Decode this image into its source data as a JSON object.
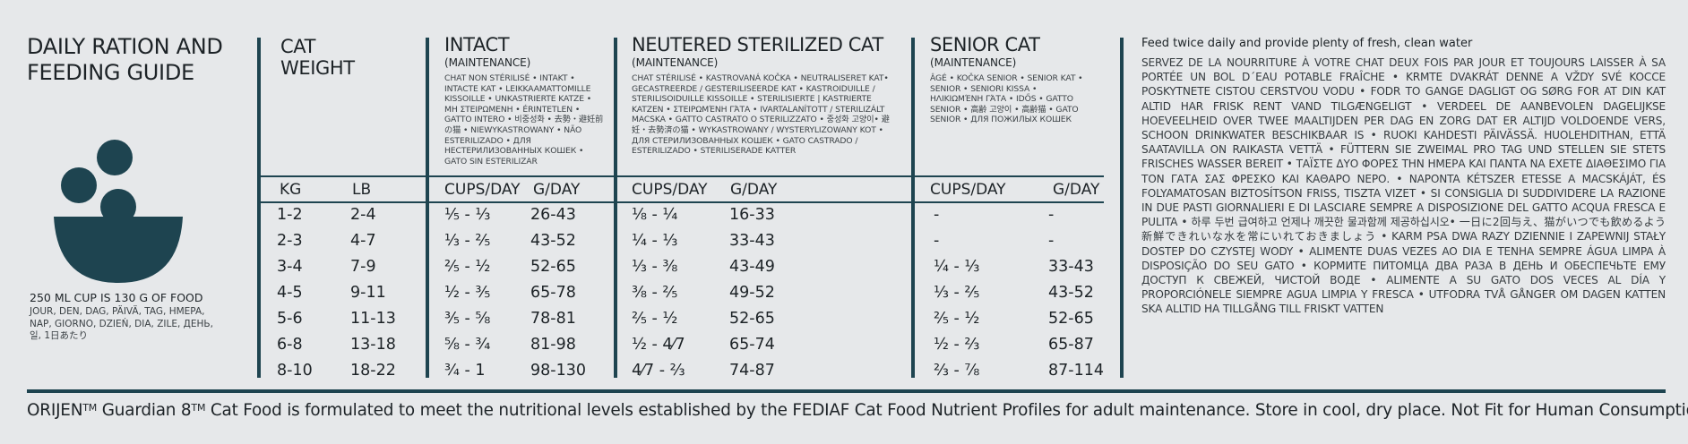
{
  "header": {
    "title_line1": "DAILY RATION AND",
    "title_line2": "FEEDING GUIDE"
  },
  "cup_info": {
    "main": "250 ML CUP IS 130 G OF FOOD",
    "translations": "JOUR, DEN, DAG, PÄIVÄ, TAG, HMEPA, NAP, GIORNO, DZIEŃ, DIA, ZILE, ДЕНЬ, 일, 1日あたり"
  },
  "weight": {
    "title_line1": "CAT",
    "title_line2": "WEIGHT",
    "unit_kg": "KG",
    "unit_lb": "LB",
    "kg": [
      "1-2",
      "2-3",
      "3-4",
      "4-5",
      "5-6",
      "6-8",
      "8-10"
    ],
    "lb": [
      "2-4",
      "4-7",
      "7-9",
      "9-11",
      "11-13",
      "13-18",
      "18-22"
    ]
  },
  "intact": {
    "title": "INTACT",
    "subtitle": "(MAINTENANCE)",
    "translations": "CHAT NON STÉRILISÉ • INTAKT • INTACTE KAT • LEIKKAAMATTOMILLE KISSOILLE • UNKASTRIERTE KATZE • ΜΗ ΣΤΕΙΡΩΜΕΝΗ • ÉRINTETLEN • GATTO INTERO • 비중성화 • 去勢・避妊前の猫 • NIEWYKASTROWANY • NÃO ESTERILIZADO • ДЛЯ НЕСТЕРИЛИЗОВАННЫХ КОШЕК • GATO SIN ESTERILIZAR",
    "unit_cups": "CUPS/DAY",
    "unit_g": "G/DAY",
    "cups": [
      "⅕ - ⅓",
      "⅓ - ⅖",
      "⅖ - ½",
      "½ - ⅗",
      "⅗ - ⅝",
      "⅝ - ¾",
      "¾ - 1"
    ],
    "g": [
      "26-43",
      "43-52",
      "52-65",
      "65-78",
      "78-81",
      "81-98",
      "98-130"
    ]
  },
  "neutered": {
    "title": "NEUTERED STERILIZED CAT",
    "subtitle": "(MAINTENANCE)",
    "translations": "CHAT STÉRILISÉ • KASTROVANÁ KOČKA • NEUTRALISERET KAT• GECASTREERDE / GESTERILISEERDE KAT • KASTROIDUILLE / STERILISOIDUILLE KISSOILLE • STERILISIERTE | KASTRIERTE KATZEN • ΣΤΕΙΡΩΜΈΝΗ ΓΆΤΑ • IVARTALANÍTOTT / STERILIZÁLT MACSKA • GATTO CASTRATO O STERILIZZATO • 중성화 고양이• 避妊・去勢済の猫 • WYKASTROWANY / WYSTERYLIZOWANY KOT • ДЛЯ СТЕРИЛИЗОВАННЫХ КОШЕК • GATO CASTRADO / ESTERILIZADO • STERILISERADE KATTER",
    "unit_cups": "CUPS/DAY",
    "unit_g": "G/DAY",
    "cups": [
      "⅛ - ¼",
      "¼ - ⅓",
      "⅓ - ⅜",
      "⅜ - ⅖",
      "⅖ - ½",
      "½ - 4⁄7",
      "4⁄7 - ⅔"
    ],
    "g": [
      "16-33",
      "33-43",
      "43-49",
      "49-52",
      "52-65",
      "65-74",
      "74-87"
    ]
  },
  "senior": {
    "title": "SENIOR CAT",
    "subtitle": "(MAINTENANCE)",
    "translations": "ÂGÉ • KOČKA SENIOR • SENIOR KAT • SENIOR • SENIORI KISSA • ΗΛΙΚΙΩΜΈΝΗ ΓΆΤΑ • IDŐS • GATTO SENIOR • 高齢 고양이 • 高齢猫 • GATO SENIOR • ДЛЯ ПОЖИЛЫХ КОШЕК",
    "unit_cups": "CUPS/DAY",
    "unit_g": "G/DAY",
    "cups": [
      "-",
      "-",
      "¼ - ⅓",
      "⅓ - ⅖",
      "⅖ - ½",
      "½ - ⅔",
      "⅔ - ⅞"
    ],
    "g": [
      "-",
      "-",
      "33-43",
      "43-52",
      "52-65",
      "65-87",
      "87-114"
    ]
  },
  "notes": {
    "heading": "Feed twice daily and provide plenty of fresh, clean water",
    "body": "SERVEZ DE LA NOURRITURE À VOTRE CHAT DEUX FOIS PAR JOUR ET TOUJOURS LAISSER À SA PORTÉE UN BOL D´EAU POTABLE FRAÎCHE • KRMTE DVAKRÁT DENNE A VŽDY SVÉ KOCCE POSKYTNETE CISTOU CERSTVOU VODU • FODR TO GANGE DAGLIGT OG SØRG FOR AT DIN KAT ALTID HAR FRISK RENT VAND TILGÆNGELIGT • VERDEEL DE AANBEVOLEN DAGELIJKSE HOEVEELHEID OVER TWEE MAALTIJDEN PER DAG EN ZORG DAT ER ALTIJD VOLDOENDE VERS, SCHOON DRINKWATER BESCHIKBAAR IS • RUOKI KAHDESTI PÄIVÄSSÄ. HUOLEHDITHAN, ETTÄ SAATAVILLA ON RAIKASTA VETTÄ • FÜTTERN SIE ZWEIMAL PRO TAG UND STELLEN SIE STETS FRISCHES WASSER BEREIT • ΤΑΪΣΤΕ ΔΥΟ ΦΟΡΕΣ ΤΗΝ ΗΜΕΡΑ ΚΑΙ ΠΑΝΤΑ ΝΑ ΕΧΕΤΕ ΔΙΑΘΕΣΙΜΟ ΓΙΑ ΤΟΝ ΓΑΤΑ ΣΑΣ ΦΡΕΣΚΟ ΚΑΙ ΚΑΘΑΡΟ ΝΕΡΟ. • NAPONTA KÉTSZER ETESSE A MACSKÁJÁT, ÉS FOLYAMATOSAN BIZTOSÍTSON FRISS, TISZTA VIZET • SI CONSIGLIA DI SUDDIVIDERE LA RAZIONE IN DUE PASTI GIORNALIERI E DI LASCIARE SEMPRE A DISPOSIZIONE DEL GATTO ACQUA FRESCA E PULITA • 하루 두번 급여하고 언제나 깨끗한 물과함께 제공하십시오• 一日に2回与え、猫がいつでも飲めるよう新鮮できれいな水を常にいれておきましょう • KARM PSA DWA RAZY DZIENNIE I ZAPEWNIJ STAŁY DOSTEP DO CZYSTEJ WODY • ALIMENTE DUAS VEZES AO DIA E TENHA SEMPRE ÁGUA LIMPA À DISPOSIÇÃO DO SEU GATO • КОРМИТЕ ПИТОМЦА ДВА РАЗА В ДЕНЬ И ОБЕСПЕЧЬТЕ ЕМУ ДОСТУП К СВЕЖЕЙ, ЧИСТОЙ ВОДЕ • ALIMENTE A SU GATO DOS VECES AL DÍA Y PROPORCIÓNELE SIEMPRE AGUA LIMPIA Y FRESCA • UTFODRA TVÅ GÅNGER OM DAGEN KATTEN SKA ALLTID HA TILLGÅNG TILL FRISKT VATTEN"
  },
  "footer": {
    "brand": "ORIJEN",
    "tm1": "TM",
    "product": " Guardian 8",
    "tm2": "TM",
    "rest": " Cat Food is formulated to meet the nutritional levels established by the FEDIAF Cat Food Nutrient Profiles for adult maintenance. Store in cool, dry place. Not Fit for Human Consumption."
  },
  "colors": {
    "accent": "#1e4450",
    "background": "#e6e8ea"
  },
  "icons": [
    "food-bowl-icon"
  ]
}
